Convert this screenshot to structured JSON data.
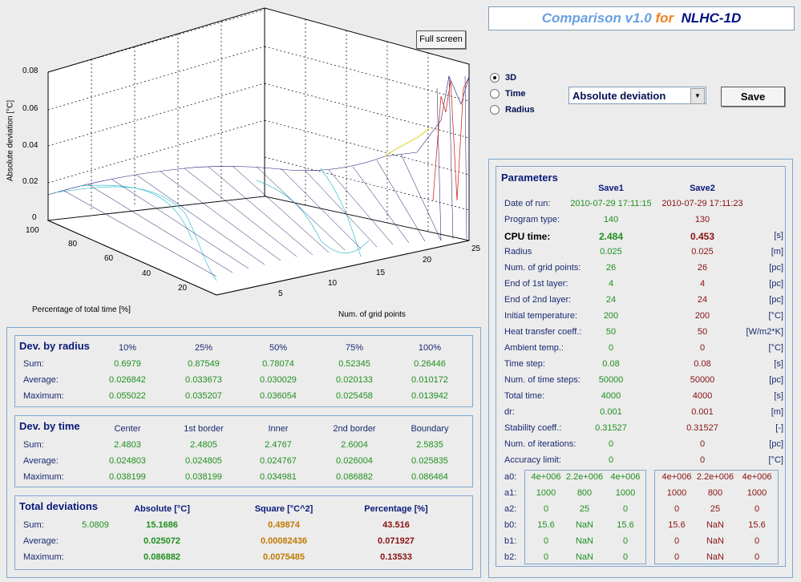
{
  "header": {
    "part1": "Comparison v1.0",
    "part2": "for",
    "part3": "NLHC-1D"
  },
  "full_screen_label": "Full screen",
  "view_mode": {
    "options": [
      {
        "label": "3D",
        "selected": true
      },
      {
        "label": "Time",
        "selected": false
      },
      {
        "label": "Radius",
        "selected": false
      }
    ]
  },
  "measure_select": {
    "value": "Absolute deviation"
  },
  "save_label": "Save",
  "plot": {
    "zlabel": "Absolute deviation [°C]",
    "z_ticks": [
      "0.08",
      "0.06",
      "0.04",
      "0.02",
      "0"
    ],
    "y_ticks": [
      "100",
      "80",
      "60",
      "40",
      "20"
    ],
    "x_ticks": [
      "5",
      "10",
      "15",
      "20",
      "25"
    ],
    "ylabel": "Percentage of total time [%]",
    "xlabel": "Num. of grid points"
  },
  "dev_radius": {
    "title": "Dev. by radius",
    "cols": [
      "10%",
      "25%",
      "50%",
      "75%",
      "100%"
    ],
    "rows": [
      {
        "label": "Sum:",
        "values": [
          "0.6979",
          "0.87549",
          "0.78074",
          "0.52345",
          "0.26446"
        ]
      },
      {
        "label": "Average:",
        "values": [
          "0.026842",
          "0.033673",
          "0.030029",
          "0.020133",
          "0.010172"
        ]
      },
      {
        "label": "Maximum:",
        "values": [
          "0.055022",
          "0.035207",
          "0.036054",
          "0.025458",
          "0.013942"
        ]
      }
    ]
  },
  "dev_time": {
    "title": "Dev. by time",
    "cols": [
      "Center",
      "1st border",
      "Inner",
      "2nd border",
      "Boundary"
    ],
    "rows": [
      {
        "label": "Sum:",
        "values": [
          "2.4803",
          "2.4805",
          "2.4767",
          "2.6004",
          "2.5835"
        ]
      },
      {
        "label": "Average:",
        "values": [
          "0.024803",
          "0.024805",
          "0.024767",
          "0.026004",
          "0.025835"
        ]
      },
      {
        "label": "Maximum:",
        "values": [
          "0.038199",
          "0.038199",
          "0.034981",
          "0.086882",
          "0.086464"
        ]
      }
    ]
  },
  "total_dev": {
    "title": "Total deviations",
    "cols": [
      "Absolute [°C]",
      "Square [°C^2]",
      "Percentage [%]"
    ],
    "rows": [
      {
        "label": "Sum:",
        "extra": "5.0809",
        "values": [
          "15.1686",
          "0.49874",
          "43.516"
        ]
      },
      {
        "label": "Average:",
        "extra": "",
        "values": [
          "0.025072",
          "0.00082436",
          "0.071927"
        ]
      },
      {
        "label": "Maximum:",
        "extra": "",
        "values": [
          "0.086882",
          "0.0075485",
          "0.13533"
        ]
      }
    ]
  },
  "params": {
    "title": "Parameters",
    "save1": "Save1",
    "save2": "Save2",
    "rows": [
      {
        "label": "Date of run:",
        "s1": "2010-07-29 17:11:15",
        "s2": "2010-07-29 17:11:23",
        "unit": ""
      },
      {
        "label": "Program type:",
        "s1": "140",
        "s2": "130",
        "unit": ""
      },
      {
        "label": "CPU time:",
        "s1": "2.484",
        "s2": "0.453",
        "unit": "[s]"
      },
      {
        "label": "Radius",
        "s1": "0.025",
        "s2": "0.025",
        "unit": "[m]"
      },
      {
        "label": "Num. of grid points:",
        "s1": "26",
        "s2": "26",
        "unit": "[pc]"
      },
      {
        "label": "End of 1st layer:",
        "s1": "4",
        "s2": "4",
        "unit": "[pc]"
      },
      {
        "label": "End of 2nd layer:",
        "s1": "24",
        "s2": "24",
        "unit": "[pc]"
      },
      {
        "label": "Initial temperature:",
        "s1": "200",
        "s2": "200",
        "unit": "[°C]"
      },
      {
        "label": "Heat transfer coeff.:",
        "s1": "50",
        "s2": "50",
        "unit": "[W/m2*K]"
      },
      {
        "label": "Ambient temp.:",
        "s1": "0",
        "s2": "0",
        "unit": "[°C]"
      },
      {
        "label": "Time step:",
        "s1": "0.08",
        "s2": "0.08",
        "unit": "[s]"
      },
      {
        "label": "Num. of time steps:",
        "s1": "50000",
        "s2": "50000",
        "unit": "[pc]"
      },
      {
        "label": "Total time:",
        "s1": "4000",
        "s2": "4000",
        "unit": "[s]"
      },
      {
        "label": "dr:",
        "s1": "0.001",
        "s2": "0.001",
        "unit": "[m]"
      },
      {
        "label": "Stability coeff.:",
        "s1": "0.31527",
        "s2": "0.31527",
        "unit": "[-]"
      },
      {
        "label": "Num. of iterations:",
        "s1": "0",
        "s2": "0",
        "unit": "[pc]"
      },
      {
        "label": "Accuracy limit:",
        "s1": "0",
        "s2": "0",
        "unit": "[°C]"
      }
    ],
    "coeffs": [
      {
        "label": "a0:",
        "s1": [
          "4e+006",
          "2.2e+006",
          "4e+006"
        ],
        "s2": [
          "4e+006",
          "2.2e+006",
          "4e+006"
        ]
      },
      {
        "label": "a1:",
        "s1": [
          "1000",
          "800",
          "1000"
        ],
        "s2": [
          "1000",
          "800",
          "1000"
        ]
      },
      {
        "label": "a2:",
        "s1": [
          "0",
          "25",
          "0"
        ],
        "s2": [
          "0",
          "25",
          "0"
        ]
      },
      {
        "label": "b0:",
        "s1": [
          "15.6",
          "NaN",
          "15.6"
        ],
        "s2": [
          "15.6",
          "NaN",
          "15.6"
        ]
      },
      {
        "label": "b1:",
        "s1": [
          "0",
          "NaN",
          "0"
        ],
        "s2": [
          "0",
          "NaN",
          "0"
        ]
      },
      {
        "label": "b2:",
        "s1": [
          "0",
          "NaN",
          "0"
        ],
        "s2": [
          "0",
          "NaN",
          "0"
        ]
      }
    ]
  }
}
